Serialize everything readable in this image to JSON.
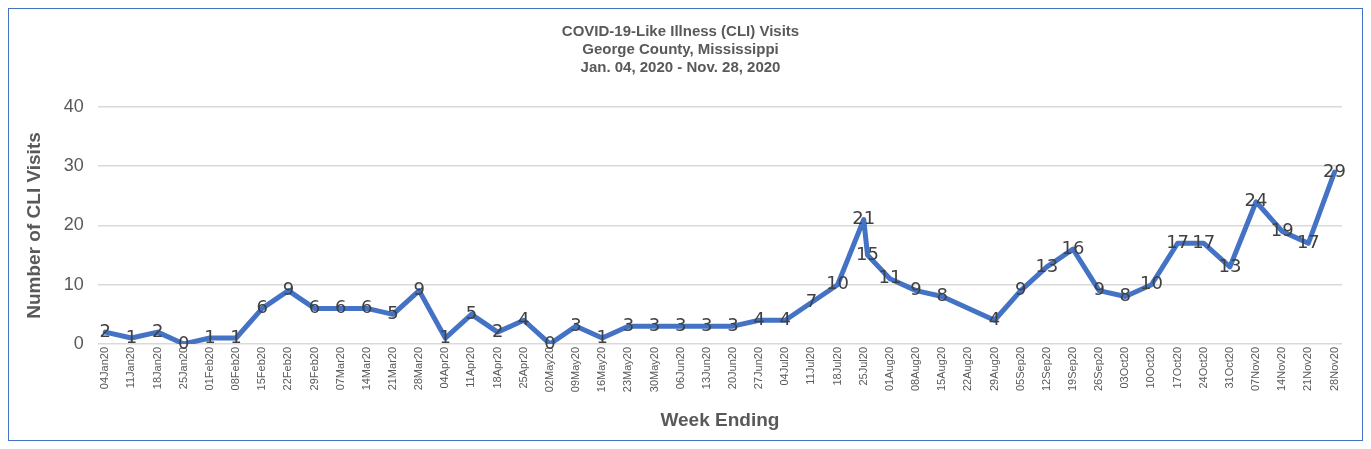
{
  "chart_data": {
    "type": "line",
    "title": "COVID-19-Like Illness (CLI) Visits\nGeorge County, Mississippi\nJan. 04, 2020 - Nov. 28, 2020",
    "xlabel": "Week Ending",
    "ylabel": "Number of CLI Visits",
    "x": [
      "2020-01-04",
      "2020-01-11",
      "2020-01-18",
      "2020-01-25",
      "2020-02-01",
      "2020-02-08",
      "2020-02-15",
      "2020-02-22",
      "2020-02-29",
      "2020-03-07",
      "2020-03-14",
      "2020-03-21",
      "2020-03-28",
      "2020-04-04",
      "2020-04-11",
      "2020-04-18",
      "2020-04-25",
      "2020-05-02",
      "2020-05-09",
      "2020-05-16",
      "2020-05-23",
      "2020-05-30",
      "2020-06-06",
      "2020-06-13",
      "2020-06-20",
      "2020-06-27",
      "2020-07-04",
      "2020-07-11",
      "2020-07-18",
      "2020-07-25",
      "2020-07-26",
      "2020-08-01",
      "2020-08-08",
      "2020-08-15",
      "2020-08-29",
      "2020-09-05",
      "2020-09-12",
      "2020-09-19",
      "2020-09-26",
      "2020-10-03",
      "2020-10-10",
      "2020-10-17",
      "2020-10-24",
      "2020-10-31",
      "2020-11-07",
      "2020-11-14",
      "2020-11-21",
      "2020-11-28"
    ],
    "series": [
      {
        "color": "#4472c4",
        "values": [
          2,
          1,
          2,
          0,
          1,
          1,
          6,
          9,
          6,
          6,
          6,
          5,
          9,
          1,
          5,
          2,
          4,
          0,
          3,
          1,
          3,
          3,
          3,
          3,
          3,
          4,
          4,
          7,
          10,
          21,
          15,
          11,
          9,
          8,
          4,
          9,
          13,
          16,
          9,
          8,
          10,
          17,
          17,
          13,
          24,
          19,
          17,
          29
        ]
      }
    ],
    "xlim": [
      "2020-01-02",
      "2020-11-30"
    ],
    "xticks": [
      {
        "value": "2020-01-04",
        "label": "04Jan20"
      },
      {
        "value": "2020-01-11",
        "label": "11Jan20"
      },
      {
        "value": "2020-01-18",
        "label": "18Jan20"
      },
      {
        "value": "2020-01-25",
        "label": "25Jan20"
      },
      {
        "value": "2020-02-01",
        "label": "01Feb20"
      },
      {
        "value": "2020-02-08",
        "label": "08Feb20"
      },
      {
        "value": "2020-02-15",
        "label": "15Feb20"
      },
      {
        "value": "2020-02-22",
        "label": "22Feb20"
      },
      {
        "value": "2020-02-29",
        "label": "29Feb20"
      },
      {
        "value": "2020-03-07",
        "label": "07Mar20"
      },
      {
        "value": "2020-03-14",
        "label": "14Mar20"
      },
      {
        "value": "2020-03-21",
        "label": "21Mar20"
      },
      {
        "value": "2020-03-28",
        "label": "28Mar20"
      },
      {
        "value": "2020-04-04",
        "label": "04Apr20"
      },
      {
        "value": "2020-04-11",
        "label": "11Apr20"
      },
      {
        "value": "2020-04-18",
        "label": "18Apr20"
      },
      {
        "value": "2020-04-25",
        "label": "25Apr20"
      },
      {
        "value": "2020-05-02",
        "label": "02May20"
      },
      {
        "value": "2020-05-09",
        "label": "09May20"
      },
      {
        "value": "2020-05-16",
        "label": "16May20"
      },
      {
        "value": "2020-05-23",
        "label": "23May20"
      },
      {
        "value": "2020-05-30",
        "label": "30May20"
      },
      {
        "value": "2020-06-06",
        "label": "06Jun20"
      },
      {
        "value": "2020-06-13",
        "label": "13Jun20"
      },
      {
        "value": "2020-06-20",
        "label": "20Jun20"
      },
      {
        "value": "2020-06-27",
        "label": "27Jun20"
      },
      {
        "value": "2020-07-04",
        "label": "04Jul20"
      },
      {
        "value": "2020-07-11",
        "label": "11Jul20"
      },
      {
        "value": "2020-07-18",
        "label": "18Jul20"
      },
      {
        "value": "2020-07-25",
        "label": "25Jul20"
      },
      {
        "value": "2020-08-01",
        "label": "01Aug20"
      },
      {
        "value": "2020-08-08",
        "label": "08Aug20"
      },
      {
        "value": "2020-08-15",
        "label": "15Aug20"
      },
      {
        "value": "2020-08-22",
        "label": "22Aug20"
      },
      {
        "value": "2020-08-29",
        "label": "29Aug20"
      },
      {
        "value": "2020-09-05",
        "label": "05Sep20"
      },
      {
        "value": "2020-09-12",
        "label": "12Sep20"
      },
      {
        "value": "2020-09-19",
        "label": "19Sep20"
      },
      {
        "value": "2020-09-26",
        "label": "26Sep20"
      },
      {
        "value": "2020-10-03",
        "label": "03Oct20"
      },
      {
        "value": "2020-10-10",
        "label": "10Oct20"
      },
      {
        "value": "2020-10-17",
        "label": "17Oct20"
      },
      {
        "value": "2020-10-24",
        "label": "24Oct20"
      },
      {
        "value": "2020-10-31",
        "label": "31Oct20"
      },
      {
        "value": "2020-11-07",
        "label": "07Nov20"
      },
      {
        "value": "2020-11-14",
        "label": "14Nov20"
      },
      {
        "value": "2020-11-21",
        "label": "21Nov20"
      },
      {
        "value": "2020-11-28",
        "label": "28Nov20"
      }
    ],
    "ylim": [
      0,
      40
    ],
    "yticks": [
      0,
      10,
      20,
      30,
      40
    ],
    "grid": "y",
    "legend": false,
    "marker": "none",
    "line_style": "solid",
    "data_labels": true
  }
}
